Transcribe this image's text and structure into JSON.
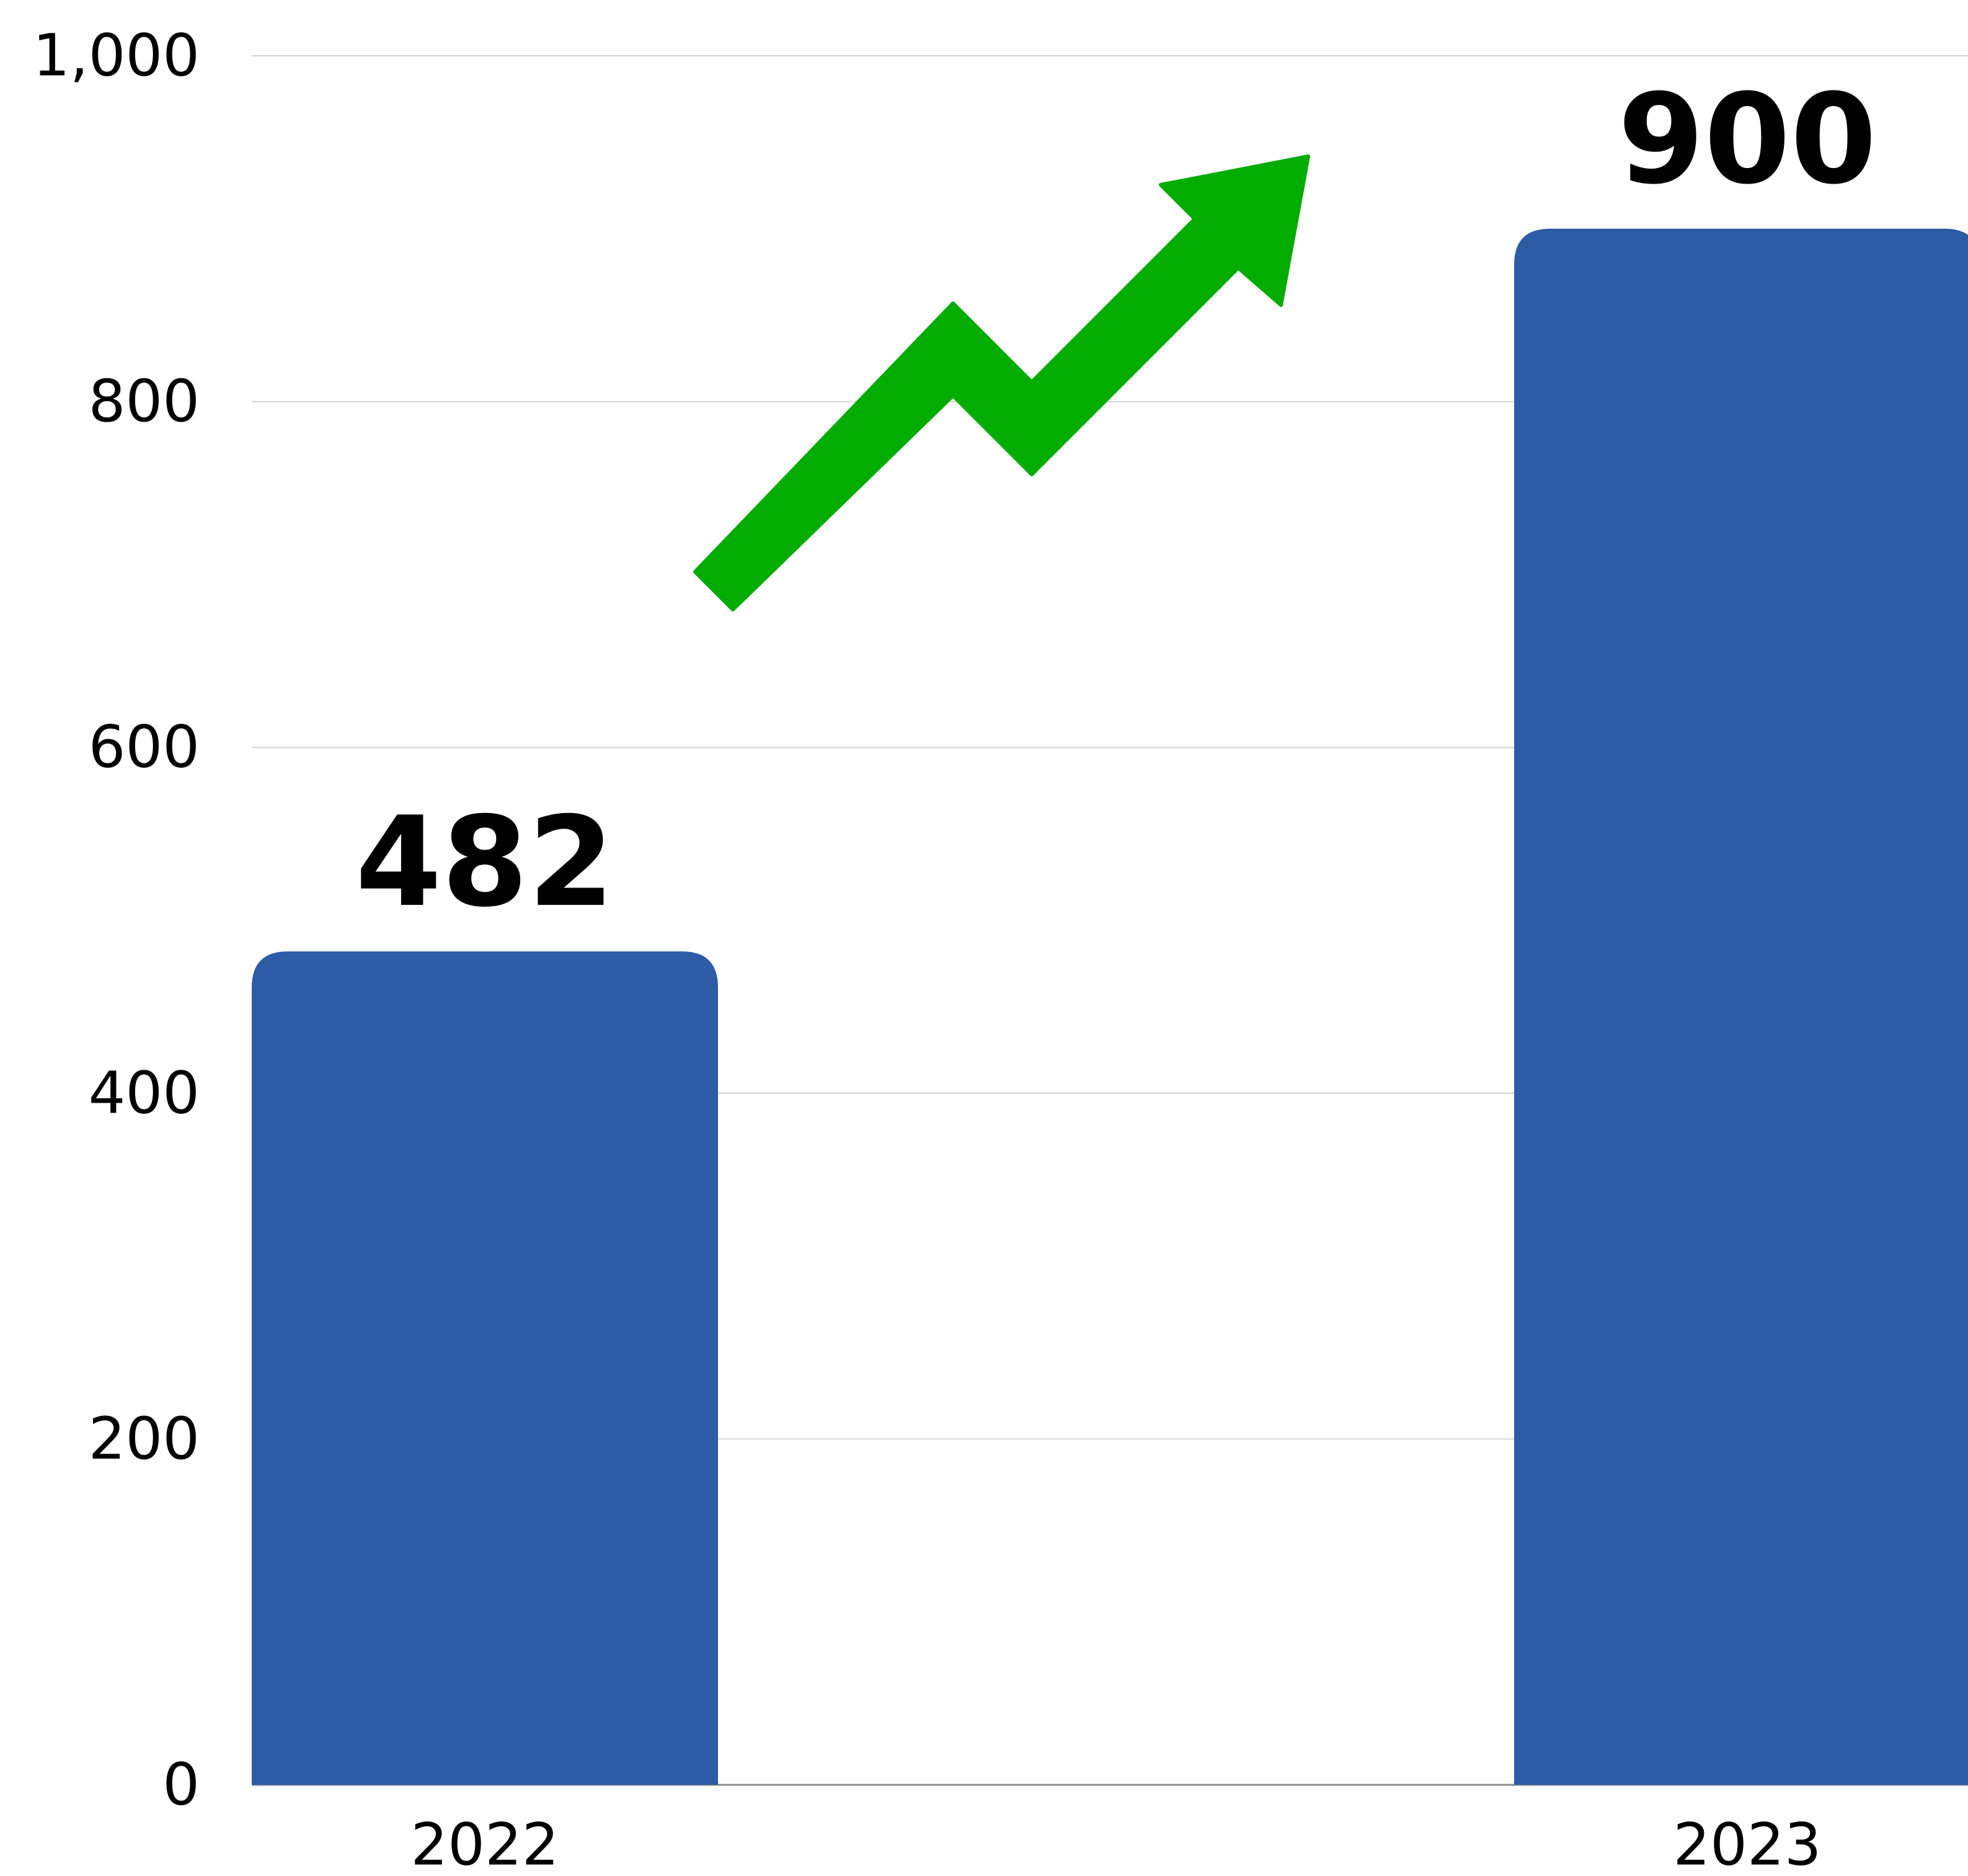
{
  "chart_data": {
    "type": "bar",
    "categories": [
      "2022",
      "2023"
    ],
    "values": [
      482,
      900
    ],
    "data_labels": [
      "482",
      "900"
    ],
    "title": "",
    "xlabel": "",
    "ylabel": "",
    "ylim": [
      0,
      1000
    ],
    "yticks": [
      0,
      200,
      400,
      600,
      800,
      1000
    ],
    "ytick_labels": [
      "0",
      "200",
      "400",
      "600",
      "800",
      "1,000"
    ],
    "grid": true,
    "legend": "none",
    "bar_color": "#2d5ba6",
    "annotation_icon": "trend-up-arrow-icon",
    "annotation_color": "#03ac00"
  }
}
